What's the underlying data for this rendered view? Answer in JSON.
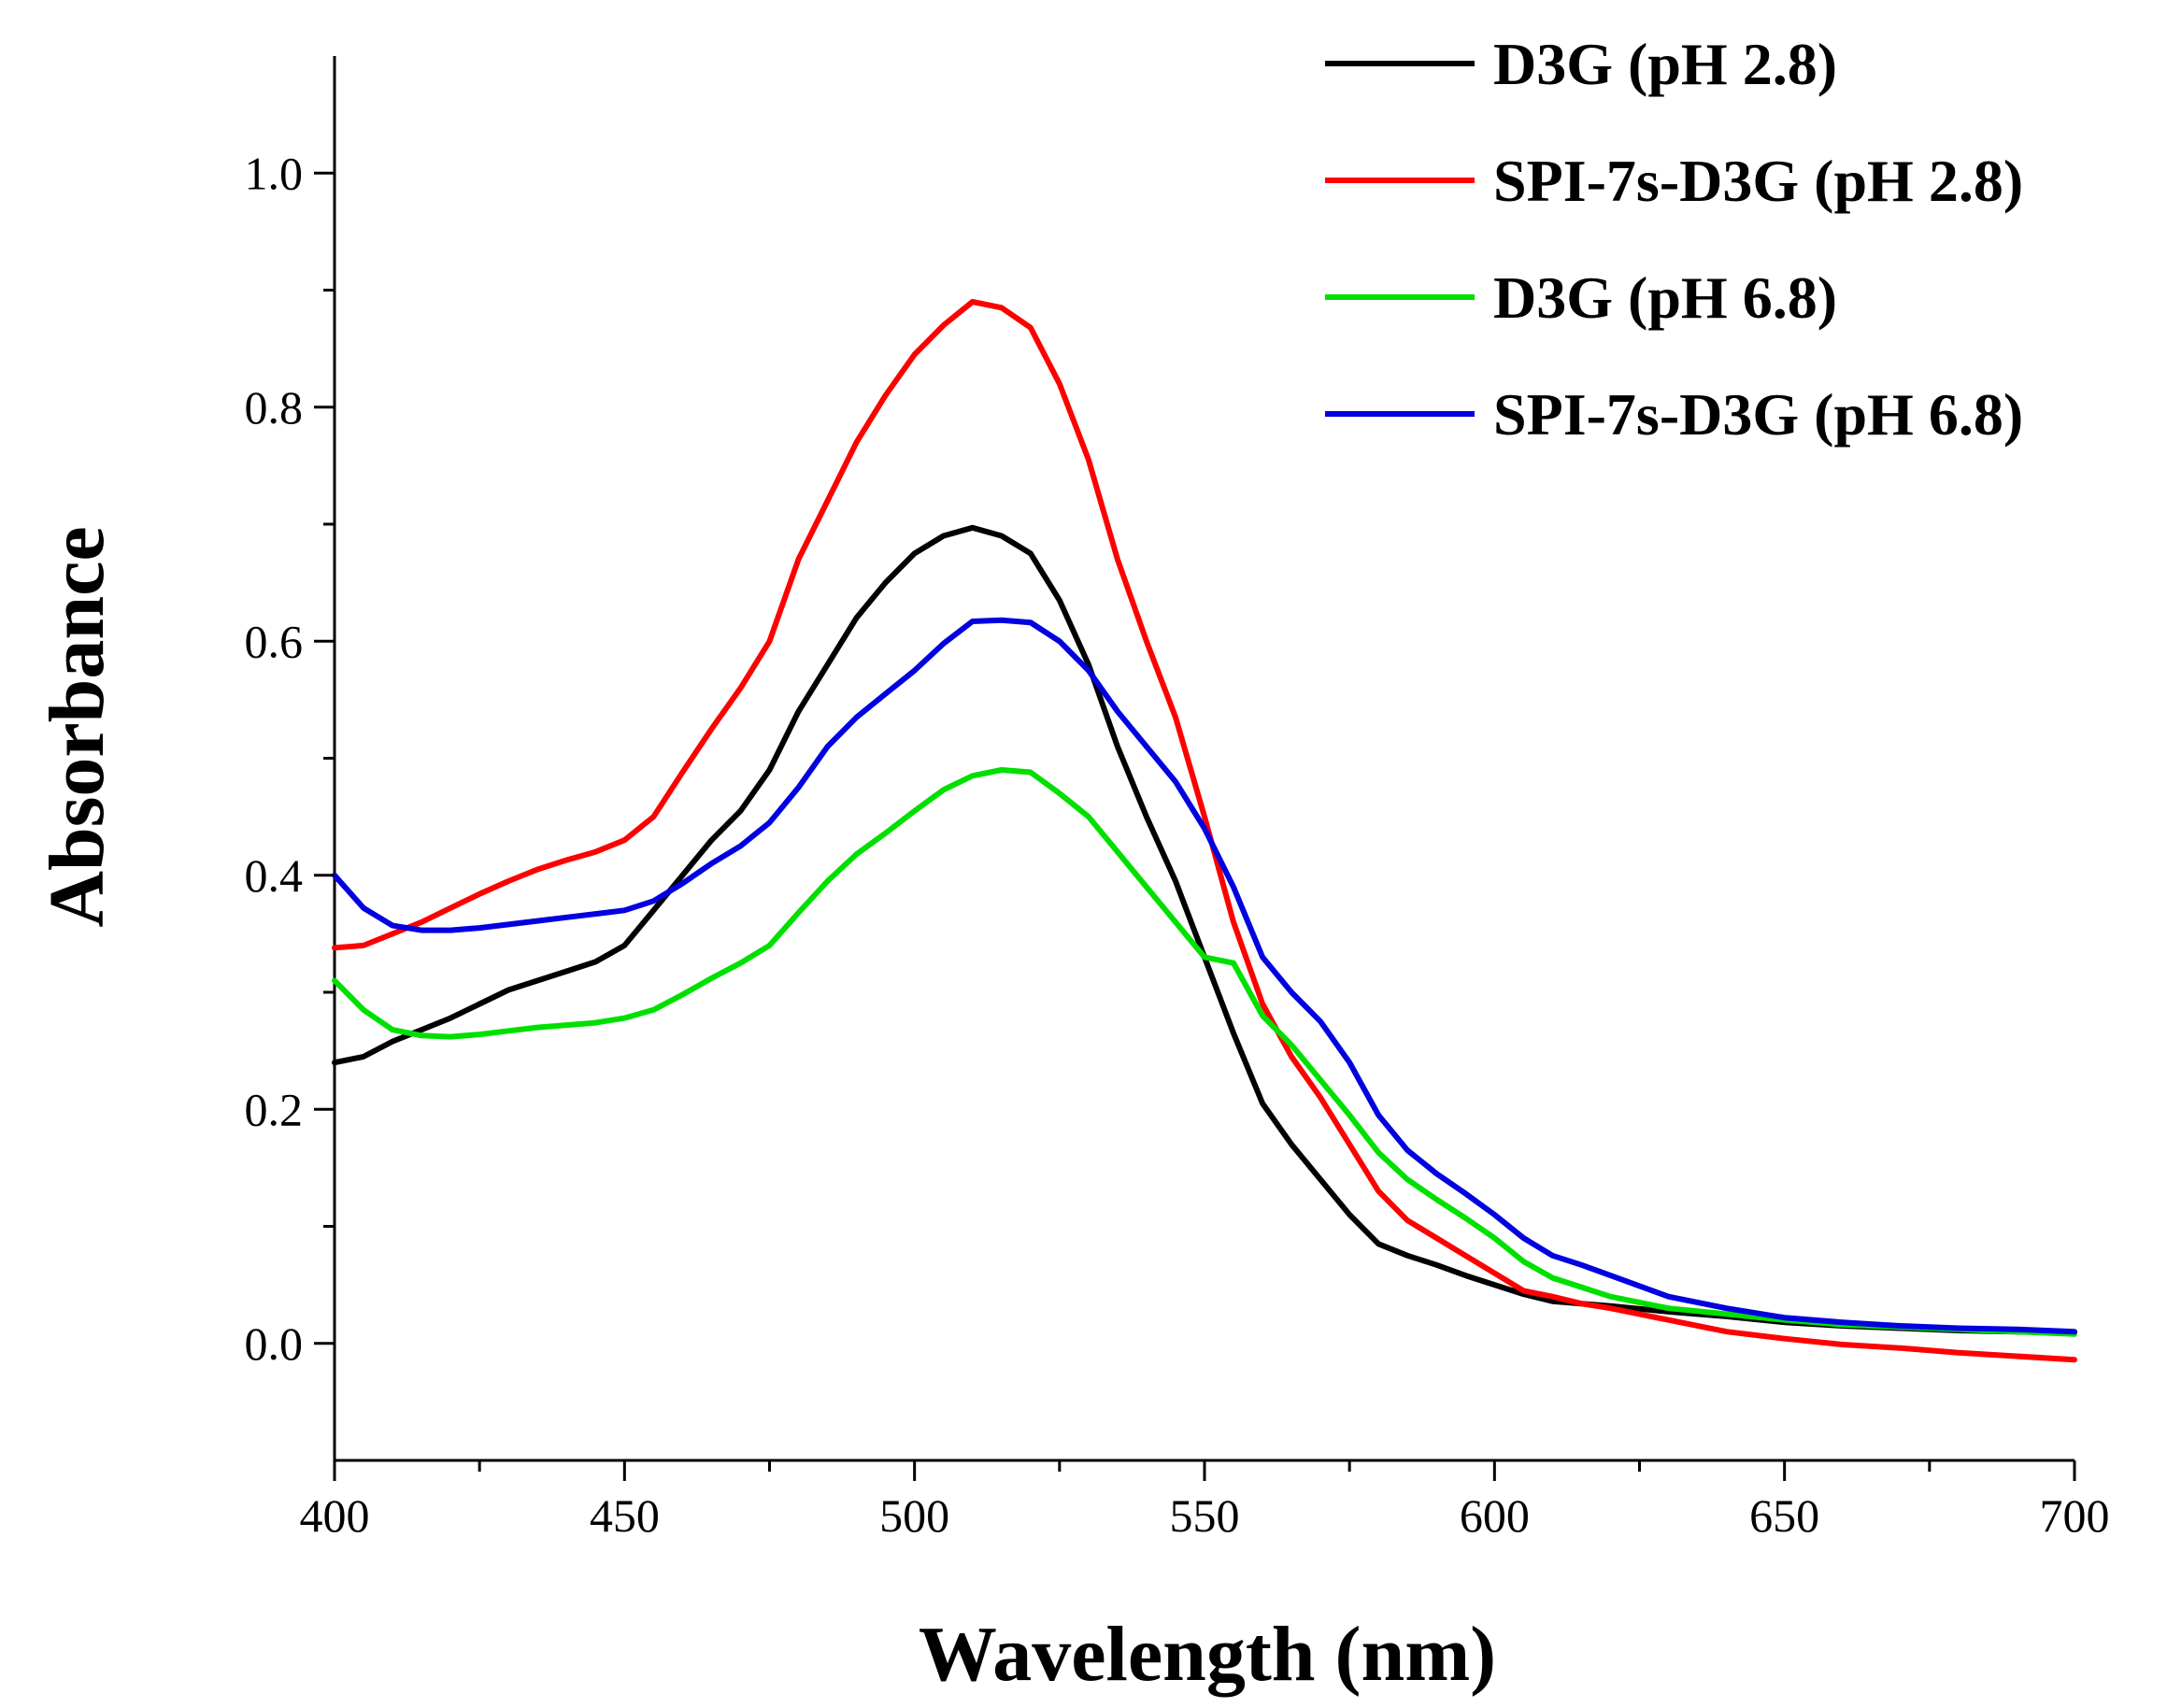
{
  "chart_data": {
    "type": "line",
    "title": "",
    "xlabel": "Wavelength (nm)",
    "ylabel": "Absorbance",
    "xlim": [
      400,
      700
    ],
    "ylim": [
      -0.1,
      1.1
    ],
    "x_ticks": [
      400,
      450,
      500,
      550,
      600,
      650,
      700
    ],
    "x_tick_labels": [
      "400",
      "450",
      "500",
      "550",
      "600",
      "650",
      "700"
    ],
    "y_ticks": [
      0.0,
      0.2,
      0.4,
      0.6,
      0.8,
      1.0
    ],
    "y_tick_labels": [
      "0.0",
      "0.2",
      "0.4",
      "0.6",
      "0.8",
      "1.0"
    ],
    "grid": false,
    "legend_position": "top-right",
    "series": [
      {
        "name": "D3G (pH 2.8)",
        "color": "#000000",
        "x": [
          400,
          405,
          410,
          415,
          420,
          425,
          430,
          435,
          440,
          445,
          450,
          455,
          460,
          465,
          470,
          475,
          480,
          485,
          490,
          495,
          500,
          505,
          510,
          515,
          520,
          525,
          530,
          535,
          540,
          545,
          550,
          555,
          560,
          565,
          570,
          575,
          580,
          585,
          590,
          595,
          600,
          605,
          610,
          615,
          620,
          630,
          640,
          650,
          660,
          670,
          680,
          690,
          700
        ],
        "y": [
          0.24,
          0.245,
          0.258,
          0.268,
          0.278,
          0.29,
          0.302,
          0.31,
          0.318,
          0.326,
          0.34,
          0.37,
          0.4,
          0.43,
          0.455,
          0.49,
          0.54,
          0.58,
          0.62,
          0.65,
          0.675,
          0.69,
          0.697,
          0.69,
          0.675,
          0.635,
          0.58,
          0.51,
          0.45,
          0.395,
          0.33,
          0.265,
          0.205,
          0.17,
          0.14,
          0.11,
          0.085,
          0.075,
          0.067,
          0.058,
          0.05,
          0.042,
          0.036,
          0.034,
          0.032,
          0.027,
          0.023,
          0.018,
          0.015,
          0.013,
          0.011,
          0.01,
          0.009
        ]
      },
      {
        "name": "SPI-7s-D3G (pH 2.8)",
        "color": "#ff0000",
        "x": [
          400,
          405,
          410,
          415,
          420,
          425,
          430,
          435,
          440,
          445,
          450,
          455,
          460,
          465,
          470,
          475,
          480,
          485,
          490,
          495,
          500,
          505,
          510,
          515,
          520,
          525,
          530,
          535,
          540,
          545,
          550,
          555,
          560,
          565,
          570,
          575,
          580,
          585,
          590,
          595,
          600,
          605,
          610,
          615,
          620,
          630,
          640,
          650,
          660,
          670,
          680,
          690,
          700
        ],
        "y": [
          0.338,
          0.34,
          0.35,
          0.36,
          0.372,
          0.384,
          0.395,
          0.405,
          0.413,
          0.42,
          0.43,
          0.45,
          0.488,
          0.525,
          0.56,
          0.6,
          0.67,
          0.72,
          0.77,
          0.81,
          0.845,
          0.87,
          0.89,
          0.885,
          0.868,
          0.82,
          0.755,
          0.67,
          0.6,
          0.535,
          0.45,
          0.36,
          0.29,
          0.245,
          0.21,
          0.17,
          0.13,
          0.105,
          0.09,
          0.075,
          0.06,
          0.045,
          0.04,
          0.034,
          0.03,
          0.02,
          0.01,
          0.004,
          -0.001,
          -0.004,
          -0.008,
          -0.011,
          -0.014
        ]
      },
      {
        "name": "D3G (pH 6.8)",
        "color": "#00e000",
        "x": [
          400,
          405,
          410,
          415,
          420,
          425,
          430,
          435,
          440,
          445,
          450,
          455,
          460,
          465,
          470,
          475,
          480,
          485,
          490,
          495,
          500,
          505,
          510,
          515,
          520,
          525,
          530,
          535,
          540,
          545,
          550,
          555,
          560,
          565,
          570,
          575,
          580,
          585,
          590,
          595,
          600,
          605,
          610,
          615,
          620,
          630,
          640,
          650,
          660,
          670,
          680,
          690,
          700
        ],
        "y": [
          0.31,
          0.285,
          0.268,
          0.263,
          0.262,
          0.264,
          0.267,
          0.27,
          0.272,
          0.274,
          0.278,
          0.285,
          0.298,
          0.312,
          0.325,
          0.34,
          0.368,
          0.395,
          0.418,
          0.436,
          0.455,
          0.473,
          0.485,
          0.49,
          0.488,
          0.47,
          0.45,
          0.42,
          0.39,
          0.36,
          0.33,
          0.325,
          0.28,
          0.255,
          0.225,
          0.195,
          0.163,
          0.14,
          0.123,
          0.107,
          0.09,
          0.07,
          0.056,
          0.048,
          0.04,
          0.03,
          0.025,
          0.02,
          0.016,
          0.014,
          0.012,
          0.01,
          0.008
        ]
      },
      {
        "name": "SPI-7s-D3G (pH 6.8)",
        "color": "#0000e0",
        "x": [
          400,
          405,
          410,
          415,
          420,
          425,
          430,
          435,
          440,
          445,
          450,
          455,
          460,
          465,
          470,
          475,
          480,
          485,
          490,
          495,
          500,
          505,
          510,
          515,
          520,
          525,
          530,
          535,
          540,
          545,
          550,
          555,
          560,
          565,
          570,
          575,
          580,
          585,
          590,
          595,
          600,
          605,
          610,
          615,
          620,
          630,
          640,
          650,
          660,
          670,
          680,
          690,
          700
        ],
        "y": [
          0.4,
          0.372,
          0.357,
          0.353,
          0.353,
          0.355,
          0.358,
          0.361,
          0.364,
          0.367,
          0.37,
          0.378,
          0.393,
          0.41,
          0.425,
          0.445,
          0.475,
          0.51,
          0.535,
          0.555,
          0.575,
          0.598,
          0.617,
          0.618,
          0.616,
          0.6,
          0.575,
          0.54,
          0.51,
          0.48,
          0.44,
          0.39,
          0.33,
          0.3,
          0.275,
          0.24,
          0.195,
          0.165,
          0.145,
          0.128,
          0.11,
          0.09,
          0.075,
          0.067,
          0.058,
          0.04,
          0.03,
          0.022,
          0.018,
          0.015,
          0.013,
          0.012,
          0.01
        ]
      }
    ]
  }
}
